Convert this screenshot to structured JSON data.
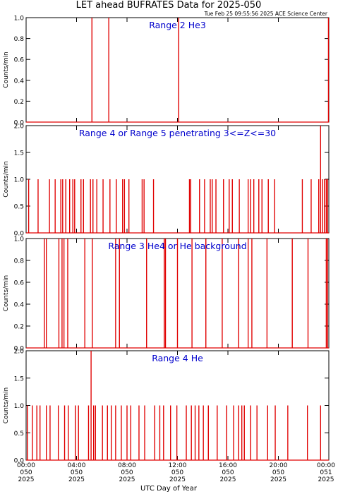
{
  "title": "LET ahead BUFRATES Data for 2025-050",
  "timestamp": "Tue Feb 25 09:55:56 2025 ACE Science Center",
  "xlabel": "UTC Day of Year",
  "colors": {
    "line": "#e00000",
    "panel_title": "#0000cc",
    "axis": "#000000"
  },
  "x_ticks": [
    {
      "time": "00:00",
      "doy": "050",
      "year": "2025"
    },
    {
      "time": "04:00",
      "doy": "050",
      "year": "2025"
    },
    {
      "time": "08:00",
      "doy": "050",
      "year": "2025"
    },
    {
      "time": "12:00",
      "doy": "050",
      "year": "2025"
    },
    {
      "time": "16:00",
      "doy": "050",
      "year": "2025"
    },
    {
      "time": "20:00",
      "doy": "050",
      "year": "2025"
    },
    {
      "time": "00:00",
      "doy": "051",
      "year": "2025"
    }
  ],
  "chart_data": [
    {
      "type": "line",
      "title": "Range 2 He3",
      "ylabel": "Counts/min",
      "xlim": [
        0,
        24
      ],
      "ylim": [
        0,
        1
      ],
      "y_ticks": [
        "0.0",
        "0.2",
        "0.4",
        "0.6",
        "0.8",
        "1.0"
      ],
      "spikes": [
        {
          "t": 5.22,
          "v": 1
        },
        {
          "t": 6.55,
          "v": 1
        },
        {
          "t": 12.1,
          "v": 1
        },
        {
          "t": 23.97,
          "v": 1
        }
      ]
    },
    {
      "type": "line",
      "title": "Range 4 or Range 5 penetrating 3<=Z<=30",
      "ylabel": "Counts/min",
      "xlim": [
        0,
        24
      ],
      "ylim": [
        0,
        2
      ],
      "y_ticks": [
        "0.0",
        "0.5",
        "1.0",
        "1.5",
        "2.0"
      ],
      "spikes": [
        {
          "t": 0.2,
          "v": 1
        },
        {
          "t": 0.95,
          "v": 1
        },
        {
          "t": 1.85,
          "v": 1
        },
        {
          "t": 2.3,
          "v": 1
        },
        {
          "t": 2.75,
          "v": 1
        },
        {
          "t": 2.9,
          "v": 1
        },
        {
          "t": 3.15,
          "v": 1
        },
        {
          "t": 3.45,
          "v": 1
        },
        {
          "t": 3.7,
          "v": 1
        },
        {
          "t": 3.85,
          "v": 1
        },
        {
          "t": 4.35,
          "v": 1
        },
        {
          "t": 4.55,
          "v": 1
        },
        {
          "t": 5.1,
          "v": 1
        },
        {
          "t": 5.3,
          "v": 1
        },
        {
          "t": 5.6,
          "v": 1
        },
        {
          "t": 6.1,
          "v": 1
        },
        {
          "t": 6.65,
          "v": 1
        },
        {
          "t": 7.15,
          "v": 1
        },
        {
          "t": 7.65,
          "v": 1
        },
        {
          "t": 7.8,
          "v": 1
        },
        {
          "t": 8.15,
          "v": 1
        },
        {
          "t": 9.2,
          "v": 1
        },
        {
          "t": 9.35,
          "v": 1
        },
        {
          "t": 10.1,
          "v": 1
        },
        {
          "t": 12.95,
          "v": 1
        },
        {
          "t": 13.05,
          "v": 1
        },
        {
          "t": 13.75,
          "v": 1
        },
        {
          "t": 14.15,
          "v": 1
        },
        {
          "t": 14.6,
          "v": 1
        },
        {
          "t": 14.75,
          "v": 1
        },
        {
          "t": 15.05,
          "v": 1
        },
        {
          "t": 15.65,
          "v": 1
        },
        {
          "t": 16.1,
          "v": 1
        },
        {
          "t": 16.35,
          "v": 1
        },
        {
          "t": 16.9,
          "v": 1
        },
        {
          "t": 17.6,
          "v": 1
        },
        {
          "t": 17.8,
          "v": 1
        },
        {
          "t": 18.05,
          "v": 1
        },
        {
          "t": 18.45,
          "v": 1
        },
        {
          "t": 18.7,
          "v": 1
        },
        {
          "t": 19.2,
          "v": 1
        },
        {
          "t": 19.7,
          "v": 1
        },
        {
          "t": 21.9,
          "v": 1
        },
        {
          "t": 22.6,
          "v": 1
        },
        {
          "t": 23.2,
          "v": 1
        },
        {
          "t": 23.35,
          "v": 2
        },
        {
          "t": 23.5,
          "v": 1
        },
        {
          "t": 23.65,
          "v": 1
        },
        {
          "t": 23.8,
          "v": 1
        },
        {
          "t": 23.9,
          "v": 1
        }
      ]
    },
    {
      "type": "line",
      "title": "Range 3 He4 or He background",
      "ylabel": "Counts/min",
      "xlim": [
        0,
        24
      ],
      "ylim": [
        0,
        1
      ],
      "y_ticks": [
        "0.0",
        "0.2",
        "0.4",
        "0.6",
        "0.8",
        "1.0"
      ],
      "spikes": [
        {
          "t": 1.45,
          "v": 1
        },
        {
          "t": 1.6,
          "v": 1
        },
        {
          "t": 2.6,
          "v": 1
        },
        {
          "t": 2.85,
          "v": 1
        },
        {
          "t": 3.0,
          "v": 1
        },
        {
          "t": 3.3,
          "v": 1
        },
        {
          "t": 4.65,
          "v": 1
        },
        {
          "t": 5.25,
          "v": 1
        },
        {
          "t": 7.1,
          "v": 1
        },
        {
          "t": 7.4,
          "v": 1
        },
        {
          "t": 9.55,
          "v": 1
        },
        {
          "t": 10.95,
          "v": 1
        },
        {
          "t": 11.05,
          "v": 1
        },
        {
          "t": 12.0,
          "v": 1
        },
        {
          "t": 13.15,
          "v": 1
        },
        {
          "t": 14.25,
          "v": 1
        },
        {
          "t": 15.55,
          "v": 1
        },
        {
          "t": 16.85,
          "v": 1
        },
        {
          "t": 17.6,
          "v": 1
        },
        {
          "t": 17.9,
          "v": 1
        },
        {
          "t": 19.1,
          "v": 1
        },
        {
          "t": 21.1,
          "v": 1
        },
        {
          "t": 22.35,
          "v": 1
        },
        {
          "t": 23.8,
          "v": 1
        },
        {
          "t": 23.9,
          "v": 1
        }
      ]
    },
    {
      "type": "line",
      "title": "Range 4 He",
      "ylabel": "Counts/min",
      "xlim": [
        0,
        24
      ],
      "ylim": [
        0,
        2
      ],
      "y_ticks": [
        "0.0",
        "0.5",
        "1.0",
        "1.5",
        "2.0"
      ],
      "spikes": [
        {
          "t": 0.1,
          "v": 1
        },
        {
          "t": 0.5,
          "v": 1
        },
        {
          "t": 0.85,
          "v": 1
        },
        {
          "t": 1.1,
          "v": 1
        },
        {
          "t": 1.6,
          "v": 1
        },
        {
          "t": 1.9,
          "v": 1
        },
        {
          "t": 2.55,
          "v": 1
        },
        {
          "t": 3.05,
          "v": 1
        },
        {
          "t": 3.35,
          "v": 1
        },
        {
          "t": 3.9,
          "v": 1
        },
        {
          "t": 4.15,
          "v": 1
        },
        {
          "t": 4.95,
          "v": 1
        },
        {
          "t": 5.15,
          "v": 2
        },
        {
          "t": 5.35,
          "v": 1
        },
        {
          "t": 5.5,
          "v": 1
        },
        {
          "t": 6.05,
          "v": 1
        },
        {
          "t": 6.45,
          "v": 1
        },
        {
          "t": 6.75,
          "v": 1
        },
        {
          "t": 7.1,
          "v": 1
        },
        {
          "t": 7.55,
          "v": 1
        },
        {
          "t": 8.0,
          "v": 1
        },
        {
          "t": 8.3,
          "v": 1
        },
        {
          "t": 8.95,
          "v": 1
        },
        {
          "t": 9.4,
          "v": 1
        },
        {
          "t": 10.2,
          "v": 1
        },
        {
          "t": 10.6,
          "v": 1
        },
        {
          "t": 10.9,
          "v": 1
        },
        {
          "t": 11.45,
          "v": 1
        },
        {
          "t": 11.95,
          "v": 1
        },
        {
          "t": 12.7,
          "v": 1
        },
        {
          "t": 13.1,
          "v": 1
        },
        {
          "t": 13.4,
          "v": 1
        },
        {
          "t": 13.7,
          "v": 1
        },
        {
          "t": 14.05,
          "v": 1
        },
        {
          "t": 14.45,
          "v": 1
        },
        {
          "t": 15.15,
          "v": 1
        },
        {
          "t": 15.9,
          "v": 1
        },
        {
          "t": 16.45,
          "v": 1
        },
        {
          "t": 16.85,
          "v": 1
        },
        {
          "t": 17.1,
          "v": 1
        },
        {
          "t": 17.3,
          "v": 1
        },
        {
          "t": 17.8,
          "v": 1
        },
        {
          "t": 18.3,
          "v": 1
        },
        {
          "t": 19.15,
          "v": 1
        },
        {
          "t": 19.75,
          "v": 1
        },
        {
          "t": 20.75,
          "v": 1
        },
        {
          "t": 22.3,
          "v": 1
        },
        {
          "t": 23.35,
          "v": 1
        }
      ]
    }
  ]
}
